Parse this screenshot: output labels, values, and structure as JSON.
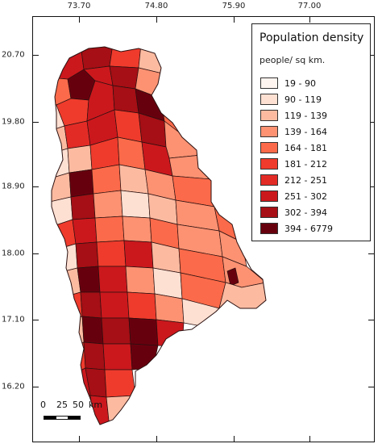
{
  "axes": {
    "longitude_ticks": [
      "73.70",
      "74.80",
      "75.90",
      "77.00"
    ],
    "latitude_ticks": [
      "20.70",
      "19.80",
      "18.90",
      "18.00",
      "17.10",
      "16.20"
    ]
  },
  "legend": {
    "title": "Population density",
    "unit": "people/ sq km.",
    "classes": [
      {
        "label": "19 - 90",
        "color": "#fff5f0"
      },
      {
        "label": "90 - 119",
        "color": "#fee0d2"
      },
      {
        "label": "119 - 139",
        "color": "#fcbba1"
      },
      {
        "label": "139 - 164",
        "color": "#fc9272"
      },
      {
        "label": "164 - 181",
        "color": "#fb6a4a"
      },
      {
        "label": "181 - 212",
        "color": "#ef3b2c"
      },
      {
        "label": "212 - 251",
        "color": "#e32b26"
      },
      {
        "label": "251 - 302",
        "color": "#cb181d"
      },
      {
        "label": "302 - 394",
        "color": "#a50f15"
      },
      {
        "label": "394 - 6779",
        "color": "#67000d"
      }
    ]
  },
  "scale": {
    "tick_0": "0",
    "tick_25": "25",
    "tick_50": "50",
    "unit": "km"
  },
  "colors": {
    "boundary": "#2b1010",
    "frame": "#111111"
  }
}
